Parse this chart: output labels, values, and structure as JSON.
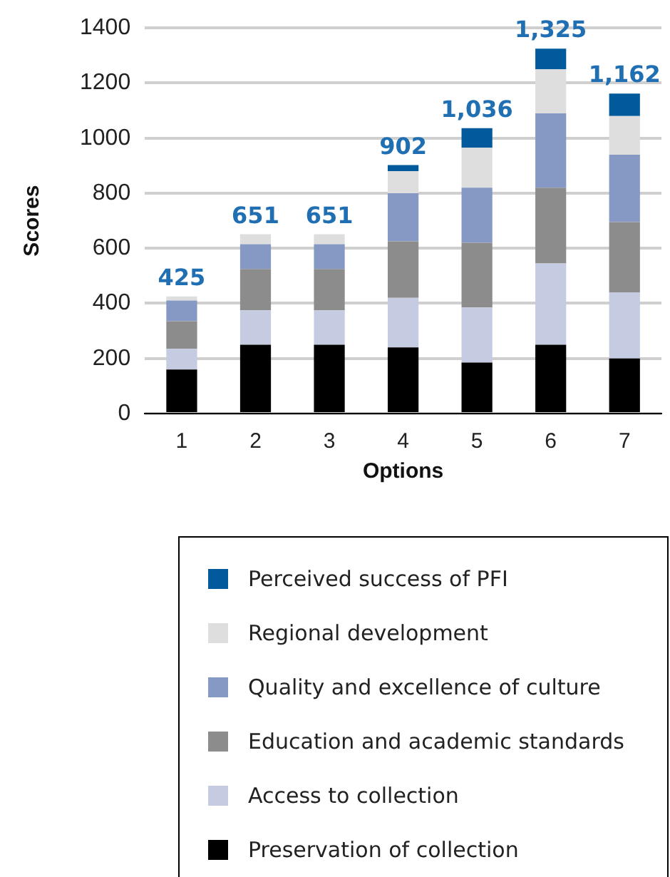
{
  "chart_data": {
    "type": "bar",
    "xlabel": "Options",
    "ylabel": "Scores",
    "categories": [
      "1",
      "2",
      "3",
      "4",
      "5",
      "6",
      "7"
    ],
    "stacked": true,
    "ylim": [
      0,
      1400
    ],
    "yticks": [
      0,
      200,
      400,
      600,
      800,
      1000,
      1200,
      1400
    ],
    "grid": "y",
    "legend": "bottom",
    "series": [
      {
        "name": "Preservation of collection",
        "color": "#000000",
        "values": [
          160,
          250,
          250,
          240,
          185,
          250,
          200
        ]
      },
      {
        "name": "Access to collection",
        "color": "#c5cbe0",
        "values": [
          75,
          125,
          125,
          180,
          200,
          295,
          240
        ]
      },
      {
        "name": "Education and academic standards",
        "color": "#8c8c8c",
        "values": [
          100,
          150,
          150,
          205,
          235,
          275,
          255
        ]
      },
      {
        "name": "Quality and excellence of culture",
        "color": "#8699c4",
        "values": [
          75,
          90,
          90,
          175,
          200,
          270,
          245
        ]
      },
      {
        "name": "Regional development",
        "color": "#dedede",
        "values": [
          15,
          36,
          36,
          80,
          145,
          160,
          140
        ]
      },
      {
        "name": "Perceived success of PFI",
        "color": "#005a9c",
        "values": [
          0,
          0,
          0,
          22,
          71,
          75,
          82
        ]
      }
    ],
    "totals": [
      "425",
      "651",
      "651",
      "902",
      "1,036",
      "1,325",
      "1,162"
    ]
  }
}
